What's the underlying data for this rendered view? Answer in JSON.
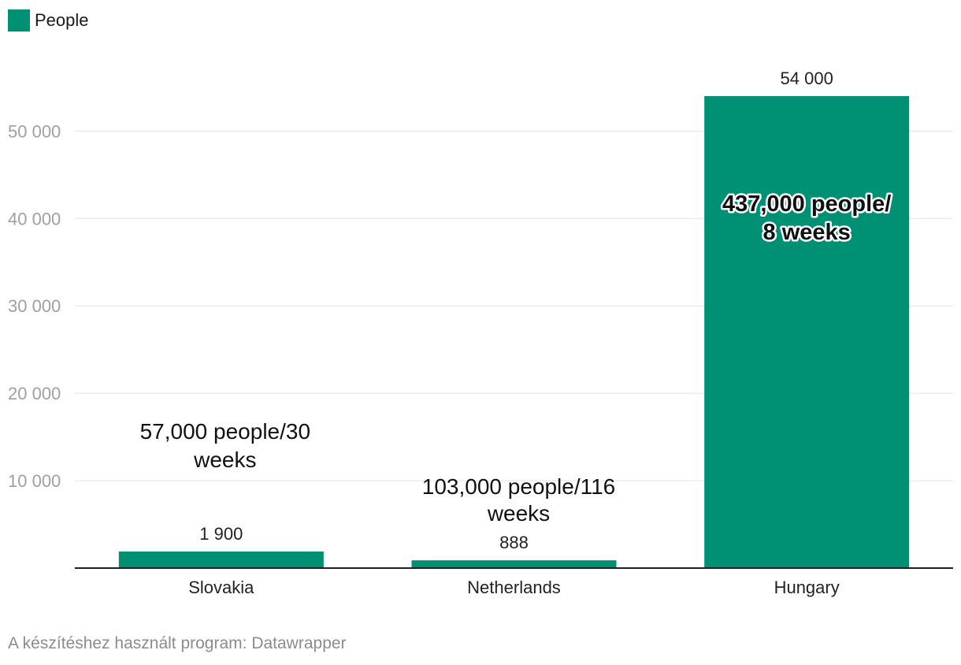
{
  "colors": {
    "bar": "#009175",
    "grid": "#e3e3e3",
    "axis": "#222222",
    "tick_text": "#a0a0a0",
    "label_text": "#222222",
    "footer_text": "#8c8c8c"
  },
  "legend": {
    "label": "People"
  },
  "footer": {
    "text": "A készítéshez használt program: Datawrapper"
  },
  "chart_data": {
    "type": "bar",
    "title": "",
    "xlabel": "",
    "ylabel": "",
    "categories": [
      "Slovakia",
      "Netherlands",
      "Hungary"
    ],
    "series": [
      {
        "name": "People",
        "values": [
          1900,
          888,
          54000
        ]
      }
    ],
    "value_labels": [
      "1 900",
      "888",
      "54 000"
    ],
    "ylim": [
      0,
      54000
    ],
    "yticks": [
      10000,
      20000,
      30000,
      40000,
      50000
    ],
    "ytick_labels": [
      "10 000",
      "20 000",
      "30 000",
      "40 000",
      "50 000"
    ],
    "grid": true,
    "legend_position": "top-left",
    "annotations": [
      {
        "category": "Slovakia",
        "lines": [
          "57,000 people/30",
          "weeks"
        ],
        "placement": "above",
        "style": "plain"
      },
      {
        "category": "Netherlands",
        "lines": [
          "103,000 people/116",
          "weeks"
        ],
        "placement": "above",
        "style": "plain"
      },
      {
        "category": "Hungary",
        "lines": [
          "437,000 people/",
          "8 weeks"
        ],
        "placement": "inside",
        "style": "bold-outlined"
      }
    ]
  }
}
